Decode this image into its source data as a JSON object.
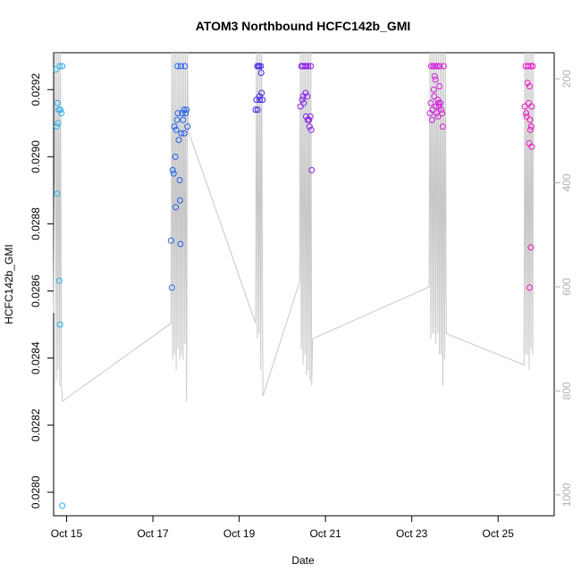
{
  "chart_data": {
    "type": "scatter",
    "title": "ATOM3 Northbound HCFC142b_GMI",
    "xlabel": "Date",
    "ylabel": "HCFC142b_GMI",
    "xlim": [
      14.7,
      26.3
    ],
    "ylim": [
      0.02793,
      0.02931
    ],
    "x_ticks": [
      15,
      17,
      19,
      21,
      23,
      25
    ],
    "x_tick_labels": [
      "Oct 15",
      "Oct 17",
      "Oct 19",
      "Oct 21",
      "Oct 23",
      "Oct 25"
    ],
    "y_ticks": [
      0.028,
      0.0282,
      0.0284,
      0.0286,
      0.0288,
      0.029,
      0.0292
    ],
    "y_tick_labels": [
      "0.0280",
      "0.0282",
      "0.0284",
      "0.0286",
      "0.0288",
      "0.0290",
      "0.0292"
    ],
    "secondary_axis": {
      "label": "",
      "lim": [
        1040,
        150
      ],
      "ticks": [
        200,
        400,
        600,
        800,
        1000
      ],
      "tick_labels": [
        "200",
        "400",
        "600",
        "800",
        "1000"
      ],
      "color": "#b0b0b0"
    },
    "series": [
      {
        "name": "HCFC142b_GMI",
        "points": [
          [
            14.75,
            0.02926
          ],
          [
            14.77,
            0.02909
          ],
          [
            14.79,
            0.02916
          ],
          [
            14.8,
            0.0291
          ],
          [
            14.82,
            0.02914
          ],
          [
            14.84,
            0.02927
          ],
          [
            14.86,
            0.02914
          ],
          [
            14.88,
            0.02913
          ],
          [
            14.9,
            0.02927
          ],
          [
            14.78,
            0.02889
          ],
          [
            14.83,
            0.02863
          ],
          [
            14.85,
            0.0285
          ],
          [
            14.9,
            0.02796
          ],
          [
            17.42,
            0.02875
          ],
          [
            17.44,
            0.02861
          ],
          [
            17.46,
            0.02896
          ],
          [
            17.48,
            0.02895
          ],
          [
            17.5,
            0.02909
          ],
          [
            17.52,
            0.029
          ],
          [
            17.53,
            0.02885
          ],
          [
            17.54,
            0.02908
          ],
          [
            17.56,
            0.02911
          ],
          [
            17.57,
            0.02927
          ],
          [
            17.58,
            0.02913
          ],
          [
            17.6,
            0.02905
          ],
          [
            17.62,
            0.02893
          ],
          [
            17.63,
            0.02887
          ],
          [
            17.64,
            0.02874
          ],
          [
            17.65,
            0.02927
          ],
          [
            17.66,
            0.02907
          ],
          [
            17.68,
            0.02913
          ],
          [
            17.7,
            0.02911
          ],
          [
            17.72,
            0.02914
          ],
          [
            17.73,
            0.02907
          ],
          [
            17.74,
            0.02927
          ],
          [
            17.76,
            0.02913
          ],
          [
            17.78,
            0.02914
          ],
          [
            17.8,
            0.02909
          ],
          [
            19.38,
            0.02914
          ],
          [
            19.4,
            0.02917
          ],
          [
            19.42,
            0.02927
          ],
          [
            19.43,
            0.02914
          ],
          [
            19.45,
            0.02927
          ],
          [
            19.47,
            0.02918
          ],
          [
            19.48,
            0.02917
          ],
          [
            19.5,
            0.02927
          ],
          [
            19.52,
            0.02919
          ],
          [
            19.54,
            0.02917
          ],
          [
            19.51,
            0.02925
          ],
          [
            19.46,
            0.02927
          ],
          [
            20.42,
            0.02915
          ],
          [
            20.44,
            0.02927
          ],
          [
            20.46,
            0.02917
          ],
          [
            20.47,
            0.02927
          ],
          [
            20.48,
            0.02918
          ],
          [
            20.5,
            0.02916
          ],
          [
            20.52,
            0.02927
          ],
          [
            20.54,
            0.02919
          ],
          [
            20.55,
            0.02912
          ],
          [
            20.56,
            0.02927
          ],
          [
            20.58,
            0.02918
          ],
          [
            20.59,
            0.02911
          ],
          [
            20.6,
            0.02927
          ],
          [
            20.62,
            0.02911
          ],
          [
            20.63,
            0.02909
          ],
          [
            20.65,
            0.02912
          ],
          [
            20.66,
            0.02927
          ],
          [
            20.67,
            0.02908
          ],
          [
            20.68,
            0.02896
          ],
          [
            23.42,
            0.02913
          ],
          [
            23.44,
            0.02916
          ],
          [
            23.45,
            0.02927
          ],
          [
            23.47,
            0.02911
          ],
          [
            23.48,
            0.02914
          ],
          [
            23.5,
            0.02927
          ],
          [
            23.51,
            0.0292
          ],
          [
            23.52,
            0.02918
          ],
          [
            23.54,
            0.02927
          ],
          [
            23.55,
            0.02923
          ],
          [
            23.56,
            0.02915
          ],
          [
            23.58,
            0.02913
          ],
          [
            23.59,
            0.02927
          ],
          [
            23.6,
            0.02917
          ],
          [
            23.61,
            0.02912
          ],
          [
            23.62,
            0.02916
          ],
          [
            23.64,
            0.02921
          ],
          [
            23.65,
            0.02927
          ],
          [
            23.66,
            0.02916
          ],
          [
            23.68,
            0.02914
          ],
          [
            23.7,
            0.02913
          ],
          [
            23.72,
            0.02909
          ],
          [
            23.74,
            0.02927
          ],
          [
            23.53,
            0.02924
          ],
          [
            23.63,
            0.02915
          ],
          [
            25.62,
            0.02915
          ],
          [
            25.64,
            0.02927
          ],
          [
            25.65,
            0.02913
          ],
          [
            25.66,
            0.02912
          ],
          [
            25.68,
            0.02922
          ],
          [
            25.7,
            0.02927
          ],
          [
            25.71,
            0.02916
          ],
          [
            25.72,
            0.02904
          ],
          [
            25.73,
            0.02921
          ],
          [
            25.74,
            0.02911
          ],
          [
            25.76,
            0.02927
          ],
          [
            25.77,
            0.02909
          ],
          [
            25.78,
            0.02915
          ],
          [
            25.75,
            0.02908
          ],
          [
            25.76,
            0.02873
          ],
          [
            25.73,
            0.02861
          ],
          [
            25.78,
            0.02903
          ],
          [
            25.8,
            0.02927
          ]
        ]
      }
    ],
    "pressure_trace": [
      [
        14.7,
        650
      ],
      [
        14.74,
        150
      ],
      [
        14.76,
        780
      ],
      [
        14.78,
        150
      ],
      [
        14.8,
        760
      ],
      [
        14.82,
        150
      ],
      [
        14.84,
        790
      ],
      [
        14.86,
        150
      ],
      [
        14.88,
        790
      ],
      [
        14.9,
        820
      ],
      [
        17.42,
        670
      ],
      [
        17.44,
        150
      ],
      [
        17.46,
        740
      ],
      [
        17.48,
        150
      ],
      [
        17.5,
        730
      ],
      [
        17.52,
        150
      ],
      [
        17.54,
        760
      ],
      [
        17.56,
        150
      ],
      [
        17.58,
        720
      ],
      [
        17.6,
        150
      ],
      [
        17.62,
        740
      ],
      [
        17.64,
        150
      ],
      [
        17.66,
        730
      ],
      [
        17.68,
        150
      ],
      [
        17.7,
        740
      ],
      [
        17.72,
        150
      ],
      [
        17.74,
        710
      ],
      [
        17.76,
        150
      ],
      [
        17.78,
        820
      ],
      [
        17.8,
        150
      ],
      [
        17.82,
        300
      ],
      [
        19.38,
        670
      ],
      [
        19.4,
        150
      ],
      [
        19.42,
        700
      ],
      [
        19.44,
        150
      ],
      [
        19.46,
        690
      ],
      [
        19.48,
        150
      ],
      [
        19.5,
        760
      ],
      [
        19.52,
        150
      ],
      [
        19.55,
        810
      ],
      [
        20.4,
        590
      ],
      [
        20.42,
        150
      ],
      [
        20.44,
        720
      ],
      [
        20.46,
        150
      ],
      [
        20.48,
        750
      ],
      [
        20.5,
        150
      ],
      [
        20.52,
        730
      ],
      [
        20.54,
        150
      ],
      [
        20.56,
        770
      ],
      [
        20.58,
        150
      ],
      [
        20.6,
        760
      ],
      [
        20.62,
        150
      ],
      [
        20.64,
        780
      ],
      [
        20.66,
        150
      ],
      [
        20.68,
        790
      ],
      [
        20.7,
        700
      ],
      [
        23.4,
        600
      ],
      [
        23.42,
        150
      ],
      [
        23.44,
        700
      ],
      [
        23.46,
        150
      ],
      [
        23.48,
        690
      ],
      [
        23.5,
        150
      ],
      [
        23.52,
        690
      ],
      [
        23.54,
        150
      ],
      [
        23.56,
        710
      ],
      [
        23.58,
        150
      ],
      [
        23.6,
        690
      ],
      [
        23.62,
        150
      ],
      [
        23.64,
        730
      ],
      [
        23.66,
        150
      ],
      [
        23.68,
        730
      ],
      [
        23.7,
        150
      ],
      [
        23.72,
        790
      ],
      [
        23.74,
        150
      ],
      [
        23.76,
        740
      ],
      [
        23.78,
        150
      ],
      [
        23.8,
        690
      ],
      [
        25.6,
        750
      ],
      [
        25.62,
        150
      ],
      [
        25.64,
        730
      ],
      [
        25.66,
        150
      ],
      [
        25.68,
        730
      ],
      [
        25.7,
        150
      ],
      [
        25.72,
        760
      ],
      [
        25.74,
        150
      ],
      [
        25.76,
        720
      ],
      [
        25.78,
        150
      ],
      [
        25.8,
        730
      ],
      [
        25.82,
        150
      ]
    ]
  }
}
